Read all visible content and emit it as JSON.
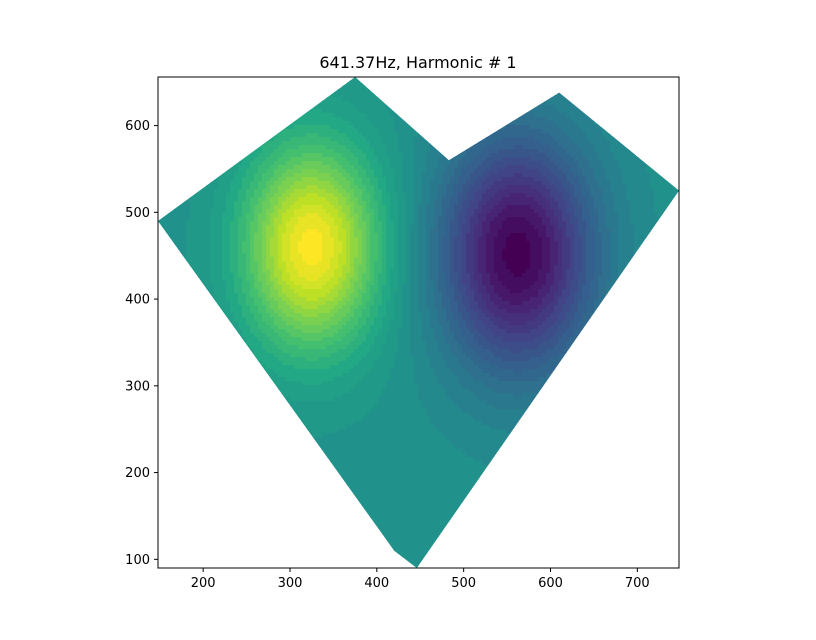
{
  "chart_data": {
    "type": "heatmap",
    "title": "641.37Hz, Harmonic # 1",
    "xlabel": "",
    "ylabel": "",
    "xlim": [
      148,
      748
    ],
    "ylim": [
      90,
      656
    ],
    "x_ticks": [
      200,
      300,
      400,
      500,
      600,
      700
    ],
    "y_ticks": [
      100,
      200,
      300,
      400,
      500,
      600
    ],
    "x_tick_labels": [
      "200",
      "300",
      "400",
      "500",
      "600",
      "700"
    ],
    "y_tick_labels": [
      "100",
      "200",
      "300",
      "400",
      "500",
      "600"
    ],
    "colormap": "viridis",
    "contour_levels": 30,
    "grid": false,
    "domain_boundary": [
      [
        148,
        490
      ],
      [
        375,
        656
      ],
      [
        483,
        560
      ],
      [
        610,
        638
      ],
      [
        748,
        525
      ],
      [
        446,
        90
      ],
      [
        420,
        110
      ]
    ],
    "field_features": [
      {
        "kind": "maximum",
        "x": 325,
        "y": 460,
        "relative_value": 1.0
      },
      {
        "kind": "minimum",
        "x": 562,
        "y": 452,
        "relative_value": 0.0
      },
      {
        "kind": "background",
        "relative_value": 0.5
      }
    ]
  }
}
